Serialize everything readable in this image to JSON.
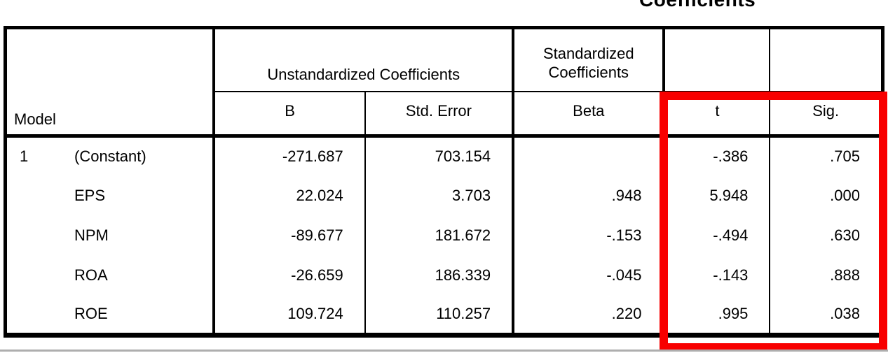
{
  "title": "Coefficients",
  "table": {
    "corner_header": "Model",
    "groups": {
      "unstandardized": "Unstandardized Coefficients",
      "standardized": "Standardized Coefficients"
    },
    "columns": {
      "b": "B",
      "std_error": "Std. Error",
      "beta": "Beta",
      "t": "t",
      "sig": "Sig."
    },
    "rows": [
      {
        "model_no": "1",
        "label": "(Constant)",
        "b": "-271.687",
        "std_error": "703.154",
        "beta": "",
        "t": "-.386",
        "sig": ".705"
      },
      {
        "model_no": "",
        "label": "EPS",
        "b": "22.024",
        "std_error": "3.703",
        "beta": ".948",
        "t": "5.948",
        "sig": ".000"
      },
      {
        "model_no": "",
        "label": "NPM",
        "b": "-89.677",
        "std_error": "181.672",
        "beta": "-.153",
        "t": "-.494",
        "sig": ".630"
      },
      {
        "model_no": "",
        "label": "ROA",
        "b": "-26.659",
        "std_error": "186.339",
        "beta": "-.045",
        "t": "-.143",
        "sig": ".888"
      },
      {
        "model_no": "",
        "label": "ROE",
        "b": "109.724",
        "std_error": "110.257",
        "beta": ".220",
        "t": ".995",
        "sig": ".038"
      }
    ]
  },
  "annotation": {
    "highlight_color": "#f80000",
    "highlighted_columns": [
      "t",
      "Sig."
    ]
  },
  "colors": {
    "border": "#000000",
    "background": "#ffffff",
    "bottom_edge_line": "#aeaeae"
  },
  "chart_data": {
    "type": "table",
    "title": "Coefficients",
    "column_groups": [
      "Unstandardized Coefficients",
      "Standardized Coefficients"
    ],
    "columns": [
      "Model",
      "B",
      "Std. Error",
      "Beta",
      "t",
      "Sig."
    ],
    "rows": [
      [
        "1 (Constant)",
        -271.687,
        703.154,
        null,
        -0.386,
        0.705
      ],
      [
        "EPS",
        22.024,
        3.703,
        0.948,
        5.948,
        0.0
      ],
      [
        "NPM",
        -89.677,
        181.672,
        -0.153,
        -0.494,
        0.63
      ],
      [
        "ROA",
        -26.659,
        186.339,
        -0.045,
        -0.143,
        0.888
      ],
      [
        "ROE",
        109.724,
        110.257,
        0.22,
        0.995,
        0.038
      ]
    ],
    "layout_hints": {
      "header_rows": 2,
      "beta_blank_for_constant": true,
      "red_rectangle_over": [
        "t",
        "Sig."
      ]
    }
  }
}
